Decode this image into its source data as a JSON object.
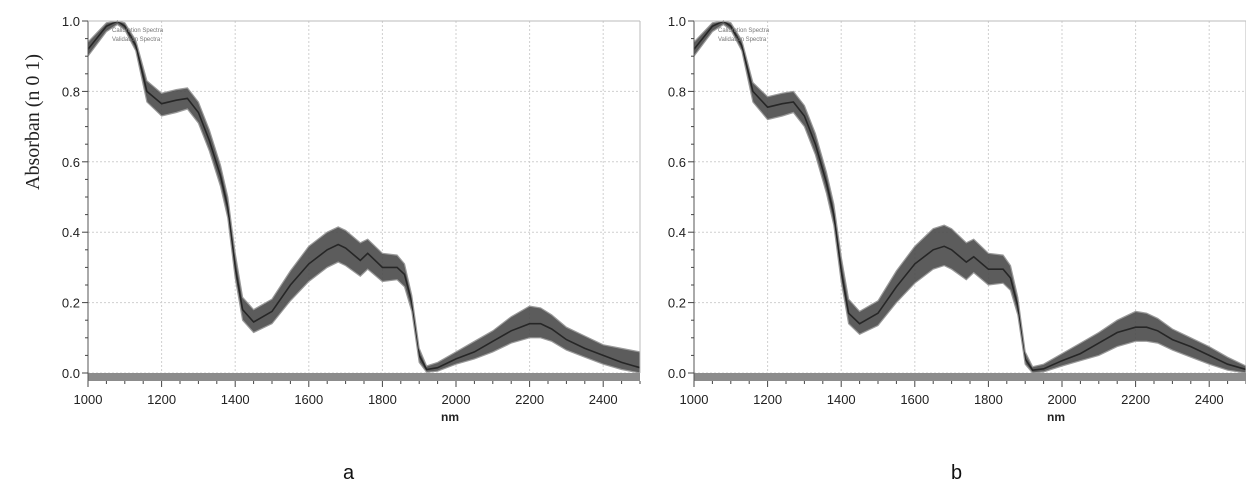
{
  "figure": {
    "ylabel": "Absorban (n 0 1)"
  },
  "chart_data": [
    {
      "type": "line",
      "panel_label": "a",
      "xlabel": "nm",
      "ylabel": "",
      "xlim": [
        1000,
        2500
      ],
      "ylim": [
        0.0,
        1.0
      ],
      "xticks": [
        1000,
        1200,
        1400,
        1600,
        1800,
        2000,
        2200,
        2400
      ],
      "yticks": [
        0.0,
        0.2,
        0.4,
        0.6,
        0.8,
        1.0
      ],
      "grid": true,
      "legend": {
        "position": "top-left",
        "entries": [
          "Calibration Spectra",
          "Validation Spectra"
        ]
      },
      "colors": {
        "band": "#4a4a4a",
        "edge": "#9a9a9a",
        "baseline": "#8c8c8c"
      },
      "series": [
        {
          "name": "Calibration Spectra",
          "role": "mean",
          "x": [
            1000,
            1050,
            1080,
            1100,
            1130,
            1160,
            1200,
            1240,
            1270,
            1300,
            1330,
            1360,
            1380,
            1400,
            1420,
            1450,
            1500,
            1550,
            1600,
            1650,
            1680,
            1700,
            1740,
            1760,
            1800,
            1840,
            1860,
            1880,
            1900,
            1920,
            1950,
            2000,
            2050,
            2100,
            2150,
            2200,
            2230,
            2260,
            2300,
            2350,
            2400,
            2450,
            2500
          ],
          "y": [
            0.92,
            0.985,
            1.0,
            0.985,
            0.93,
            0.8,
            0.765,
            0.775,
            0.78,
            0.74,
            0.66,
            0.56,
            0.47,
            0.3,
            0.18,
            0.145,
            0.175,
            0.25,
            0.31,
            0.35,
            0.365,
            0.355,
            0.32,
            0.34,
            0.3,
            0.3,
            0.28,
            0.2,
            0.05,
            0.01,
            0.015,
            0.04,
            0.06,
            0.09,
            0.12,
            0.14,
            0.14,
            0.125,
            0.095,
            0.07,
            0.05,
            0.03,
            0.015
          ]
        },
        {
          "name": "upper envelope",
          "role": "upper",
          "x": [
            1000,
            1050,
            1080,
            1100,
            1130,
            1160,
            1200,
            1240,
            1270,
            1300,
            1330,
            1360,
            1380,
            1400,
            1420,
            1450,
            1500,
            1550,
            1600,
            1650,
            1680,
            1700,
            1740,
            1760,
            1800,
            1840,
            1860,
            1880,
            1900,
            1920,
            1950,
            2000,
            2050,
            2100,
            2150,
            2200,
            2230,
            2260,
            2300,
            2350,
            2400,
            2450,
            2500
          ],
          "y": [
            0.94,
            0.995,
            1.0,
            0.995,
            0.945,
            0.83,
            0.795,
            0.805,
            0.81,
            0.77,
            0.69,
            0.59,
            0.5,
            0.34,
            0.215,
            0.18,
            0.21,
            0.29,
            0.36,
            0.4,
            0.415,
            0.405,
            0.37,
            0.38,
            0.34,
            0.335,
            0.31,
            0.22,
            0.07,
            0.02,
            0.03,
            0.06,
            0.09,
            0.12,
            0.16,
            0.19,
            0.185,
            0.165,
            0.13,
            0.105,
            0.08,
            0.07,
            0.06
          ]
        },
        {
          "name": "lower envelope",
          "role": "lower",
          "x": [
            1000,
            1050,
            1080,
            1100,
            1130,
            1160,
            1200,
            1240,
            1270,
            1300,
            1330,
            1360,
            1380,
            1400,
            1420,
            1450,
            1500,
            1550,
            1600,
            1650,
            1680,
            1700,
            1740,
            1760,
            1800,
            1840,
            1860,
            1880,
            1900,
            1920,
            1950,
            2000,
            2050,
            2100,
            2150,
            2200,
            2230,
            2260,
            2300,
            2350,
            2400,
            2450,
            2500
          ],
          "y": [
            0.9,
            0.97,
            0.99,
            0.975,
            0.915,
            0.77,
            0.73,
            0.74,
            0.75,
            0.71,
            0.63,
            0.53,
            0.44,
            0.27,
            0.15,
            0.115,
            0.14,
            0.205,
            0.26,
            0.3,
            0.315,
            0.305,
            0.275,
            0.295,
            0.26,
            0.265,
            0.245,
            0.175,
            0.03,
            0.002,
            0.005,
            0.025,
            0.04,
            0.06,
            0.085,
            0.1,
            0.1,
            0.09,
            0.065,
            0.045,
            0.025,
            0.01,
            0.0
          ]
        }
      ]
    },
    {
      "type": "line",
      "panel_label": "b",
      "xlabel": "nm",
      "ylabel": "",
      "xlim": [
        1000,
        2500
      ],
      "ylim": [
        0.0,
        1.0
      ],
      "xticks": [
        1000,
        1200,
        1400,
        1600,
        1800,
        2000,
        2200,
        2400
      ],
      "yticks": [
        0.0,
        0.2,
        0.4,
        0.6,
        0.8,
        1.0
      ],
      "grid": true,
      "legend": {
        "position": "top-left",
        "entries": [
          "Calibration Spectra",
          "Validation Spectra"
        ]
      },
      "colors": {
        "band": "#4a4a4a",
        "edge": "#9a9a9a",
        "baseline": "#8c8c8c"
      },
      "series": [
        {
          "name": "Validation Spectra",
          "role": "mean",
          "x": [
            1000,
            1050,
            1080,
            1100,
            1130,
            1160,
            1200,
            1240,
            1270,
            1300,
            1330,
            1360,
            1380,
            1400,
            1420,
            1450,
            1500,
            1550,
            1600,
            1650,
            1680,
            1700,
            1740,
            1760,
            1800,
            1840,
            1860,
            1880,
            1900,
            1920,
            1950,
            2000,
            2050,
            2100,
            2150,
            2200,
            2230,
            2260,
            2300,
            2350,
            2400,
            2450,
            2500
          ],
          "y": [
            0.92,
            0.985,
            1.0,
            0.985,
            0.93,
            0.8,
            0.755,
            0.765,
            0.77,
            0.73,
            0.65,
            0.54,
            0.45,
            0.29,
            0.17,
            0.14,
            0.17,
            0.245,
            0.31,
            0.35,
            0.36,
            0.35,
            0.315,
            0.33,
            0.295,
            0.295,
            0.27,
            0.19,
            0.04,
            0.008,
            0.012,
            0.035,
            0.055,
            0.085,
            0.115,
            0.13,
            0.13,
            0.12,
            0.095,
            0.075,
            0.05,
            0.025,
            0.01
          ]
        },
        {
          "name": "upper envelope",
          "role": "upper",
          "x": [
            1000,
            1050,
            1080,
            1100,
            1130,
            1160,
            1200,
            1240,
            1270,
            1300,
            1330,
            1360,
            1380,
            1400,
            1420,
            1450,
            1500,
            1550,
            1600,
            1650,
            1680,
            1700,
            1740,
            1760,
            1800,
            1840,
            1860,
            1880,
            1900,
            1920,
            1950,
            2000,
            2050,
            2100,
            2150,
            2200,
            2230,
            2260,
            2300,
            2350,
            2400,
            2450,
            2500
          ],
          "y": [
            0.94,
            0.995,
            1.0,
            0.995,
            0.945,
            0.825,
            0.785,
            0.795,
            0.8,
            0.76,
            0.68,
            0.57,
            0.48,
            0.33,
            0.21,
            0.175,
            0.205,
            0.29,
            0.36,
            0.41,
            0.42,
            0.41,
            0.37,
            0.38,
            0.34,
            0.335,
            0.305,
            0.215,
            0.06,
            0.018,
            0.025,
            0.055,
            0.085,
            0.115,
            0.15,
            0.175,
            0.17,
            0.155,
            0.125,
            0.1,
            0.075,
            0.045,
            0.02
          ]
        },
        {
          "name": "lower envelope",
          "role": "lower",
          "x": [
            1000,
            1050,
            1080,
            1100,
            1130,
            1160,
            1200,
            1240,
            1270,
            1300,
            1330,
            1360,
            1380,
            1400,
            1420,
            1450,
            1500,
            1550,
            1600,
            1650,
            1680,
            1700,
            1740,
            1760,
            1800,
            1840,
            1860,
            1880,
            1900,
            1920,
            1950,
            2000,
            2050,
            2100,
            2150,
            2200,
            2230,
            2260,
            2300,
            2350,
            2400,
            2450,
            2500
          ],
          "y": [
            0.9,
            0.97,
            0.99,
            0.975,
            0.915,
            0.77,
            0.72,
            0.73,
            0.74,
            0.7,
            0.62,
            0.51,
            0.42,
            0.26,
            0.14,
            0.11,
            0.135,
            0.2,
            0.255,
            0.295,
            0.305,
            0.295,
            0.265,
            0.285,
            0.25,
            0.255,
            0.235,
            0.165,
            0.025,
            0.0,
            0.003,
            0.02,
            0.035,
            0.05,
            0.075,
            0.09,
            0.09,
            0.085,
            0.065,
            0.045,
            0.025,
            0.008,
            0.0
          ]
        }
      ]
    }
  ]
}
